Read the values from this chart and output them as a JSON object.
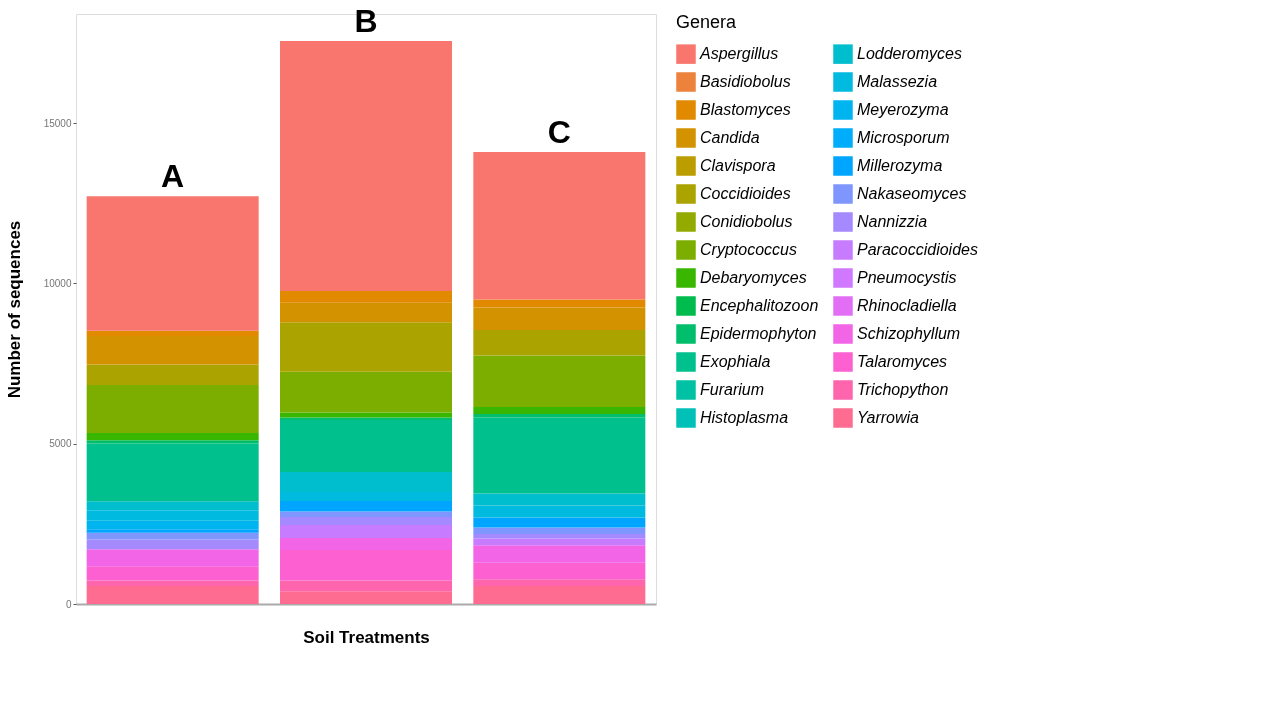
{
  "chart_data": {
    "type": "bar",
    "stacked": true,
    "categories": [
      "A",
      "B",
      "C"
    ],
    "xlabel": "Soil Treatments",
    "ylabel": "Number of sequences",
    "legend_title": "Genera",
    "legend": "right",
    "grid": false,
    "ylim": [
      0,
      18400
    ],
    "yticks": [
      0,
      5000,
      10000,
      15000
    ],
    "tick_labels": "y",
    "series": [
      {
        "name": "Yarrowia",
        "color": "#FF6C91",
        "values": [
          560,
          400,
          560
        ]
      },
      {
        "name": "Trichopython",
        "color": "#FF65AC",
        "values": [
          170,
          330,
          215
        ]
      },
      {
        "name": "Talaromyces",
        "color": "#FD61D1",
        "values": [
          450,
          955,
          515
        ]
      },
      {
        "name": "Schizophyllum",
        "color": "#F265E7",
        "values": [
          530,
          375,
          545
        ]
      },
      {
        "name": "Rhinocladiella",
        "color": "#E36EF6",
        "values": [
          0,
          0,
          0
        ]
      },
      {
        "name": "Pneumocystis",
        "color": "#D078FF",
        "values": [
          0,
          0,
          0
        ]
      },
      {
        "name": "Paracoccidioides",
        "color": "#C77CFF",
        "values": [
          0,
          400,
          205
        ]
      },
      {
        "name": "Nannizzia",
        "color": "#A58AFF",
        "values": [
          300,
          255,
          140
        ]
      },
      {
        "name": "Nakaseomyces",
        "color": "#7F96FF",
        "values": [
          215,
          170,
          205
        ]
      },
      {
        "name": "Millerozyma",
        "color": "#00A5FF",
        "values": [
          110,
          330,
          310
        ]
      },
      {
        "name": "Microsporum",
        "color": "#00ADFA",
        "values": [
          0,
          0,
          0
        ]
      },
      {
        "name": "Meyerozyma",
        "color": "#00B4EF",
        "values": [
          260,
          0,
          0
        ]
      },
      {
        "name": "Malassezia",
        "color": "#00BAE0",
        "values": [
          330,
          280,
          375
        ]
      },
      {
        "name": "Lodderomyces",
        "color": "#00BECD",
        "values": [
          280,
          625,
          375
        ]
      },
      {
        "name": "Histoplasma",
        "color": "#00C0B8",
        "values": [
          0,
          0,
          0
        ]
      },
      {
        "name": "Furarium",
        "color": "#00C1A3",
        "values": [
          0,
          0,
          0
        ]
      },
      {
        "name": "Exophiala",
        "color": "#00C08D",
        "values": [
          1800,
          1620,
          2370
        ]
      },
      {
        "name": "Epidermophyton",
        "color": "#00BE6C",
        "values": [
          100,
          75,
          110
        ]
      },
      {
        "name": "Encephalitozoon",
        "color": "#00BB4E",
        "values": [
          0,
          0,
          0
        ]
      },
      {
        "name": "Debaryomyces",
        "color": "#39B600",
        "values": [
          225,
          160,
          215
        ]
      },
      {
        "name": "Cryptococcus",
        "color": "#7CAE00",
        "values": [
          1500,
          1265,
          1610
        ]
      },
      {
        "name": "Conidiobolus",
        "color": "#93AA00",
        "values": [
          0,
          0,
          0
        ]
      },
      {
        "name": "Coccidioides",
        "color": "#ABA300",
        "values": [
          640,
          1545,
          795
        ]
      },
      {
        "name": "Clavispora",
        "color": "#BB9D00",
        "values": [
          0,
          0,
          0
        ]
      },
      {
        "name": "Candida",
        "color": "#D39200",
        "values": [
          890,
          610,
          700
        ]
      },
      {
        "name": "Blastomyces",
        "color": "#E18A00",
        "values": [
          160,
          365,
          255
        ]
      },
      {
        "name": "Basidiobolus",
        "color": "#EC823C",
        "values": [
          0,
          0,
          0
        ]
      },
      {
        "name": "Aspergillus",
        "color": "#F8766D",
        "values": [
          4200,
          7800,
          4600
        ]
      }
    ]
  }
}
